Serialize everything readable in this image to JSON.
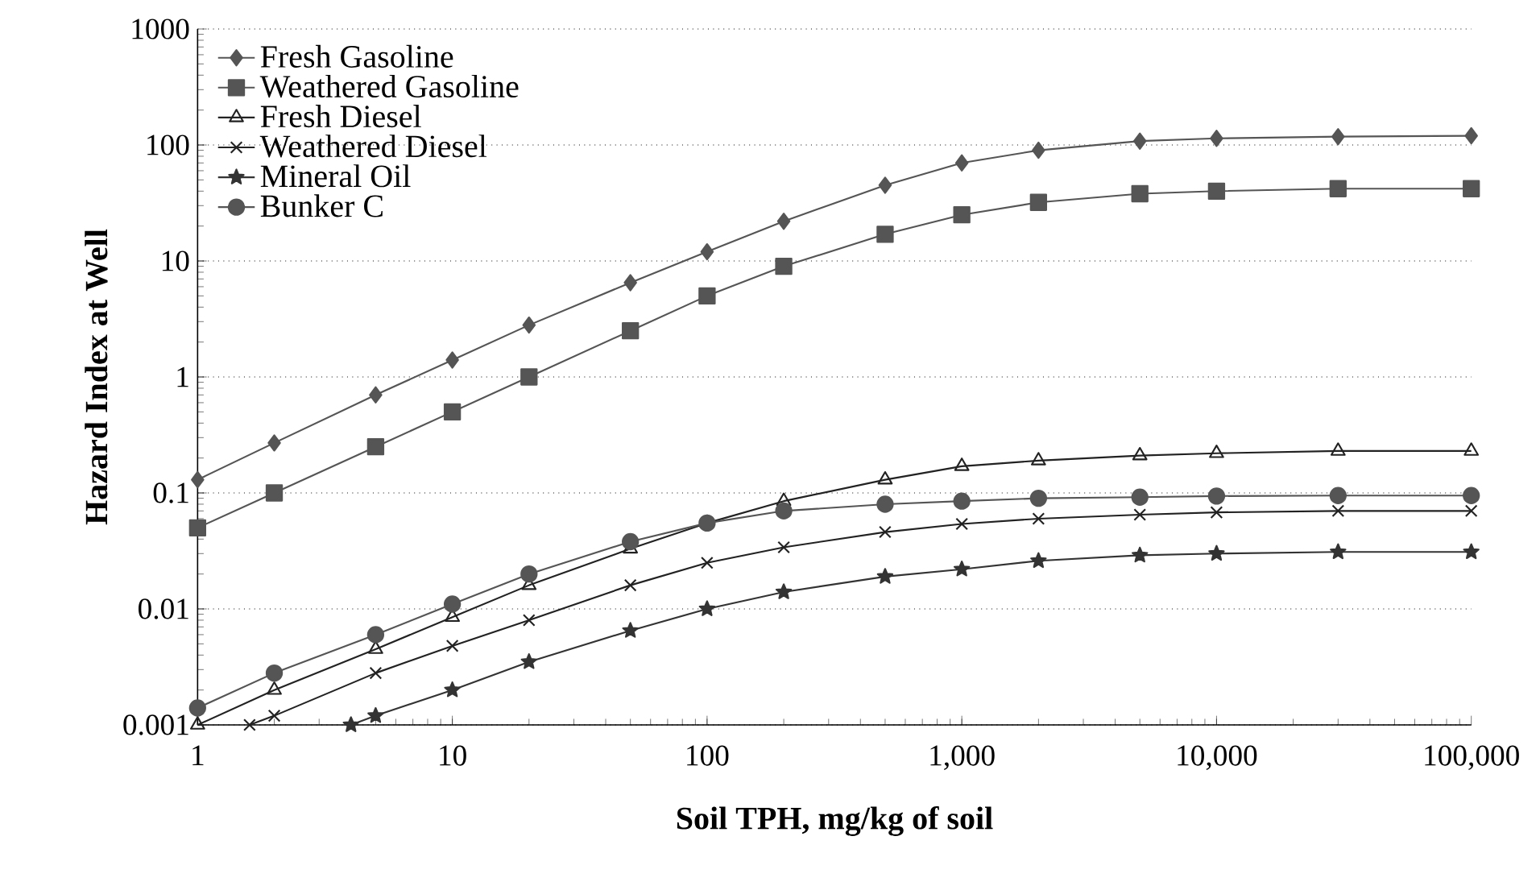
{
  "chart_data": {
    "type": "line",
    "xlabel": "Soil TPH, mg/kg of soil",
    "ylabel": "Hazard Index at Well",
    "log": "xy",
    "grid": "y",
    "legend": "top left",
    "line_style": "solid",
    "xlim": [
      1,
      100000
    ],
    "ylim": [
      0.001,
      1000
    ],
    "xticks": [
      1,
      10,
      100,
      {
        "value": 1000,
        "label": "1,000"
      },
      {
        "value": 10000,
        "label": "10,000"
      },
      {
        "value": 100000,
        "label": "100,000"
      }
    ],
    "yticks": [
      0.001,
      0.01,
      0.1,
      1,
      10,
      100,
      1000
    ],
    "series": [
      {
        "name": "Fresh Gasoline",
        "color": "#555555",
        "marker": "diamond",
        "x": [
          1,
          2,
          5,
          10,
          20,
          50,
          100,
          200,
          500,
          1000,
          2000,
          5000,
          10000,
          30000,
          100000
        ],
        "values": [
          0.13,
          0.27,
          0.7,
          1.4,
          2.8,
          6.5,
          12,
          22,
          45,
          70,
          90,
          108,
          114,
          118,
          120
        ]
      },
      {
        "name": "Weathered Gasoline",
        "color": "#555555",
        "marker": "square",
        "x": [
          1,
          2,
          5,
          10,
          20,
          50,
          100,
          200,
          500,
          1000,
          2000,
          5000,
          10000,
          30000,
          100000
        ],
        "values": [
          0.05,
          0.1,
          0.25,
          0.5,
          1.0,
          2.5,
          5,
          9,
          17,
          25,
          32,
          38,
          40,
          42,
          42
        ]
      },
      {
        "name": "Fresh Diesel",
        "color": "#222222",
        "marker": "triangle",
        "x": [
          1,
          2,
          5,
          10,
          20,
          50,
          100,
          200,
          500,
          1000,
          2000,
          5000,
          10000,
          30000,
          100000
        ],
        "values": [
          0.001,
          0.002,
          0.0045,
          0.0085,
          0.016,
          0.033,
          0.055,
          0.085,
          0.13,
          0.17,
          0.19,
          0.21,
          0.22,
          0.23,
          0.23
        ]
      },
      {
        "name": "Weathered Diesel",
        "color": "#222222",
        "marker": "cross",
        "x": [
          1.6,
          2,
          5,
          10,
          20,
          50,
          100,
          200,
          500,
          1000,
          2000,
          5000,
          10000,
          30000,
          100000
        ],
        "values": [
          0.001,
          0.0012,
          0.0028,
          0.0048,
          0.008,
          0.016,
          0.025,
          0.034,
          0.046,
          0.054,
          0.06,
          0.065,
          0.068,
          0.07,
          0.07
        ]
      },
      {
        "name": "Mineral Oil",
        "color": "#333333",
        "marker": "star",
        "x": [
          4,
          5,
          10,
          20,
          50,
          100,
          200,
          500,
          1000,
          2000,
          5000,
          10000,
          30000,
          100000
        ],
        "values": [
          0.001,
          0.0012,
          0.002,
          0.0035,
          0.0065,
          0.01,
          0.014,
          0.019,
          0.022,
          0.026,
          0.029,
          0.03,
          0.031,
          0.031
        ]
      },
      {
        "name": "Bunker C",
        "color": "#555555",
        "marker": "circle",
        "x": [
          1,
          2,
          5,
          10,
          20,
          50,
          100,
          200,
          500,
          1000,
          2000,
          5000,
          10000,
          30000,
          100000
        ],
        "values": [
          0.0014,
          0.0028,
          0.006,
          0.011,
          0.02,
          0.038,
          0.055,
          0.07,
          0.08,
          0.085,
          0.09,
          0.092,
          0.094,
          0.095,
          0.095
        ]
      }
    ]
  }
}
